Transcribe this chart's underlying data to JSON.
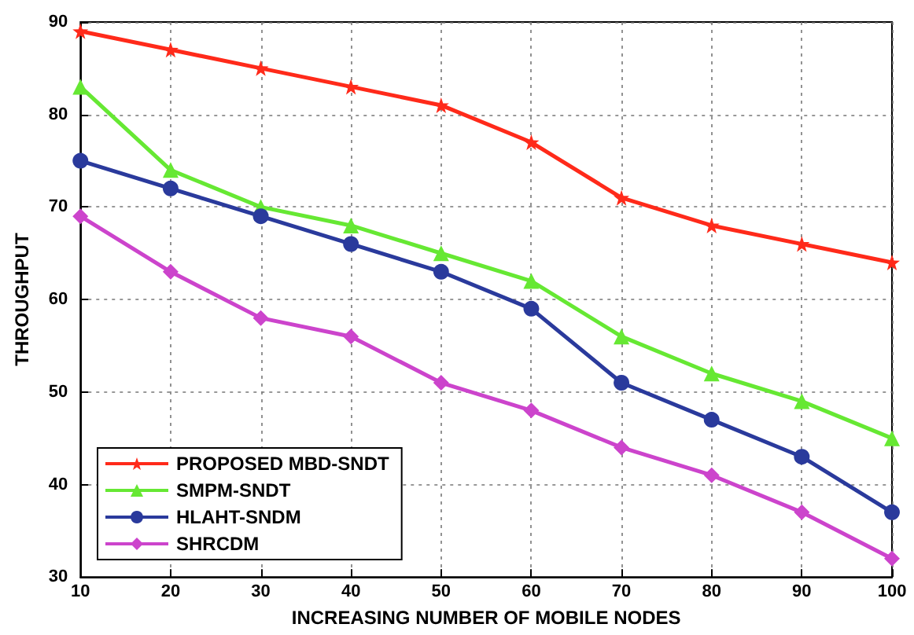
{
  "chart_data": {
    "type": "line",
    "xlabel": "INCREASING NUMBER OF MOBILE NODES",
    "ylabel": "THROUGHPUT",
    "x": [
      10,
      20,
      30,
      40,
      50,
      60,
      70,
      80,
      90,
      100
    ],
    "xlim": [
      10,
      100
    ],
    "xticks": [
      10,
      20,
      30,
      40,
      50,
      60,
      70,
      80,
      90,
      100
    ],
    "ylim": [
      30,
      90
    ],
    "yticks": [
      30,
      40,
      50,
      60,
      70,
      80,
      90
    ],
    "grid": true,
    "legend": "bottom left",
    "line_style": "solid",
    "series": [
      {
        "name": "PROPOSED MBD-SNDT",
        "color": "#ff2a1a",
        "marker": "star",
        "values": [
          89,
          87,
          85,
          83,
          81,
          77,
          71,
          68,
          66,
          64
        ]
      },
      {
        "name": "SMPM-SNDT",
        "color": "#66e833",
        "marker": "triangle",
        "values": [
          83,
          74,
          70,
          68,
          65,
          62,
          56,
          52,
          49,
          45
        ]
      },
      {
        "name": "HLAHT-SNDM",
        "color": "#2a3a9c",
        "marker": "circle",
        "values": [
          75,
          72,
          69,
          66,
          63,
          59,
          51,
          47,
          43,
          37
        ]
      },
      {
        "name": "SHRCDM",
        "color": "#cc44cc",
        "marker": "diamond",
        "values": [
          69,
          63,
          58,
          56,
          51,
          48,
          44,
          41,
          37,
          32
        ]
      }
    ]
  }
}
